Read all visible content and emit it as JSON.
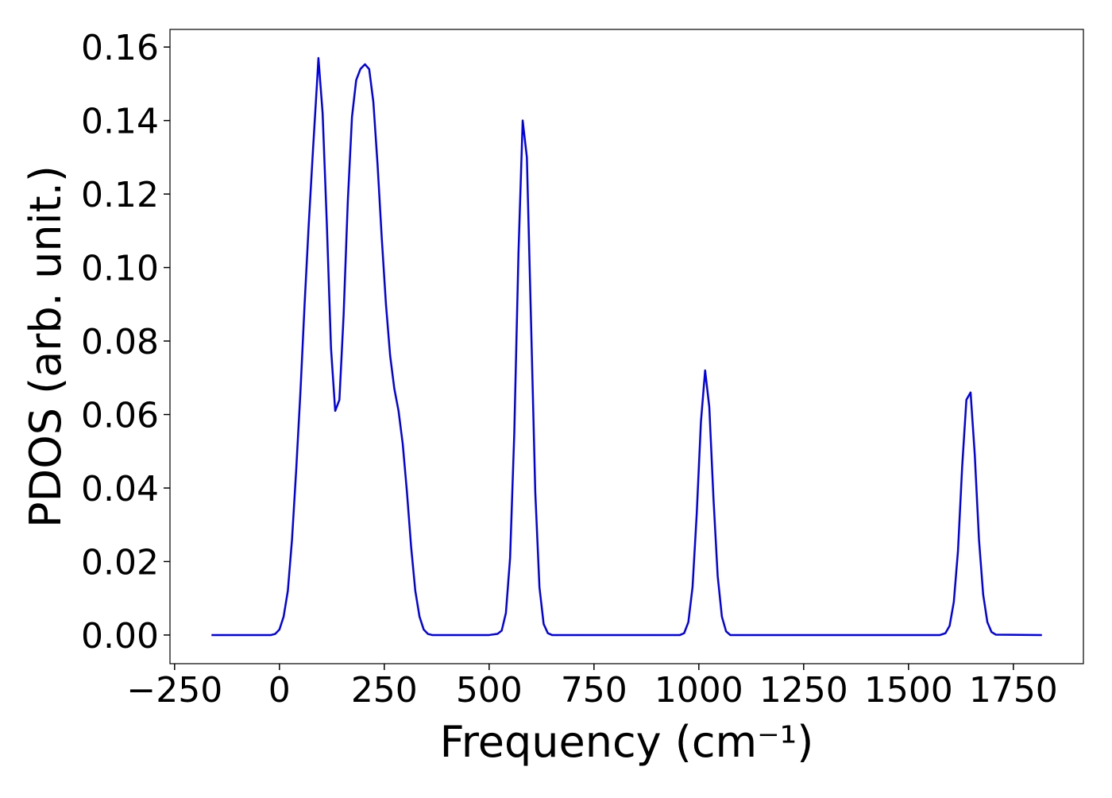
{
  "chart_data": {
    "type": "line",
    "xlabel": "Frequency (cm⁻¹)",
    "ylabel": "PDOS (arb. unit.)",
    "x": [
      -162,
      -20,
      -10,
      0,
      10,
      20,
      30,
      40,
      50,
      60,
      70,
      80,
      90,
      93,
      103,
      113,
      123,
      133,
      143,
      153,
      163,
      173,
      183,
      193,
      204,
      214,
      224,
      234,
      244,
      254,
      264,
      274,
      284,
      294,
      304,
      314,
      324,
      334,
      344,
      354,
      364,
      500,
      520,
      530,
      540,
      550,
      560,
      570,
      580,
      590,
      600,
      610,
      620,
      630,
      640,
      650,
      955,
      965,
      975,
      985,
      995,
      1005,
      1015,
      1025,
      1035,
      1045,
      1055,
      1065,
      1075,
      1575,
      1588,
      1598,
      1608,
      1618,
      1628,
      1638,
      1648,
      1658,
      1668,
      1678,
      1688,
      1698,
      1708,
      1818
    ],
    "series": [
      {
        "name": "PDOS",
        "color": "#0000ee",
        "values": [
          0,
          0,
          0.0003,
          0.0015,
          0.005,
          0.012,
          0.026,
          0.045,
          0.066,
          0.09,
          0.112,
          0.132,
          0.151,
          0.157,
          0.142,
          0.112,
          0.078,
          0.061,
          0.064,
          0.087,
          0.118,
          0.141,
          0.151,
          0.154,
          0.1553,
          0.154,
          0.145,
          0.128,
          0.108,
          0.09,
          0.076,
          0.067,
          0.061,
          0.052,
          0.039,
          0.024,
          0.012,
          0.005,
          0.0015,
          0.0003,
          0,
          0,
          0.0003,
          0.0012,
          0.006,
          0.021,
          0.055,
          0.104,
          0.14,
          0.13,
          0.085,
          0.039,
          0.013,
          0.003,
          0.0005,
          0,
          0,
          0.0005,
          0.0035,
          0.013,
          0.033,
          0.058,
          0.072,
          0.062,
          0.037,
          0.016,
          0.005,
          0.001,
          0,
          0,
          0.0005,
          0.0025,
          0.009,
          0.023,
          0.046,
          0.064,
          0.066,
          0.049,
          0.026,
          0.011,
          0.0035,
          0.0008,
          0.0001,
          0
        ]
      }
    ],
    "xlim": [
      -261,
      1917
    ],
    "ylim": [
      -0.0078,
      0.1648
    ],
    "xticks": [
      {
        "value": -250,
        "label": "−250"
      },
      0,
      250,
      500,
      750,
      1000,
      1250,
      1500,
      1750
    ],
    "yticks": [
      {
        "value": 0,
        "label": "0.00"
      },
      0.02,
      0.04,
      0.06,
      0.08,
      {
        "value": 0.1,
        "label": "0.10"
      },
      0.12,
      0.14,
      0.16
    ],
    "grid": false
  }
}
